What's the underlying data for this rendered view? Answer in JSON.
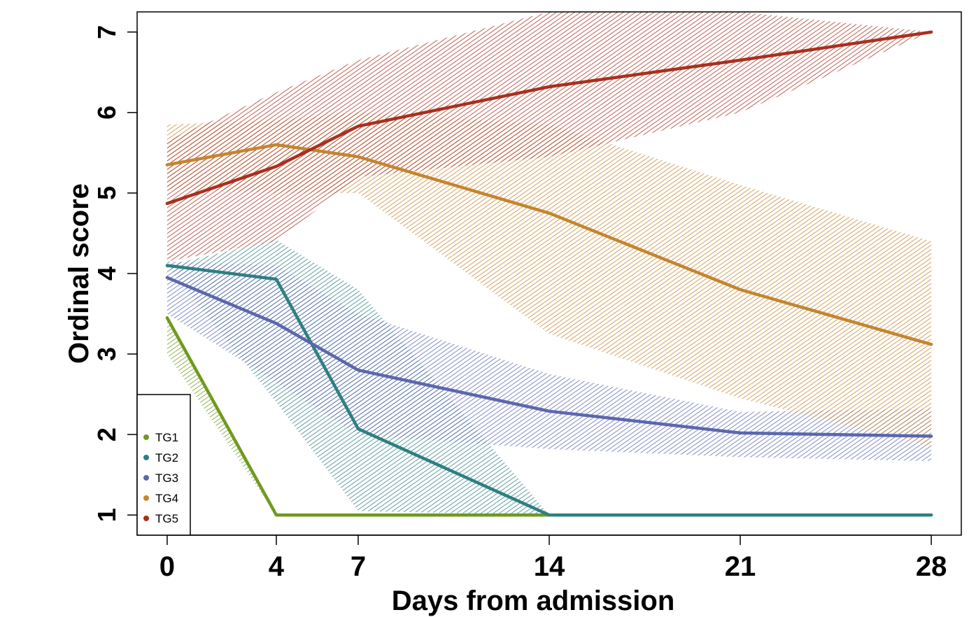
{
  "chart_data": {
    "type": "line",
    "title": "",
    "xlabel": "Days from admission",
    "ylabel": "Ordinal score",
    "x": [
      0,
      4,
      7,
      14,
      21,
      28
    ],
    "xticks": [
      0,
      4,
      7,
      14,
      21,
      28
    ],
    "yticks": [
      1,
      2,
      3,
      4,
      5,
      6,
      7
    ],
    "xlim": [
      -1.1,
      29.1
    ],
    "ylim": [
      0.75,
      7.25
    ],
    "grid": false,
    "legend": "bottom-left",
    "bands": "hatched confidence bands",
    "series": [
      {
        "name": "TG1",
        "color": "#6e9a1e",
        "values": [
          3.45,
          1.0,
          1.0,
          1.0,
          1.0,
          1.0
        ],
        "lower": [
          3.0,
          1.0,
          1.0,
          1.0,
          1.0,
          1.0
        ],
        "upper": [
          3.45,
          1.0,
          1.0,
          1.0,
          1.0,
          1.0
        ]
      },
      {
        "name": "TG2",
        "color": "#2e7f82",
        "values": [
          4.1,
          3.93,
          2.07,
          1.0,
          1.0,
          1.0
        ],
        "lower": [
          4.1,
          2.4,
          1.05,
          1.0,
          1.0,
          1.0
        ],
        "upper": [
          4.1,
          4.42,
          3.8,
          1.0,
          1.0,
          1.0
        ]
      },
      {
        "name": "TG3",
        "color": "#5b67ad",
        "values": [
          3.95,
          3.38,
          2.8,
          2.29,
          2.02,
          1.98
        ],
        "lower": [
          3.5,
          2.65,
          2.0,
          1.82,
          1.72,
          1.67
        ],
        "upper": [
          4.15,
          4.1,
          3.5,
          2.75,
          2.28,
          2.32
        ]
      },
      {
        "name": "TG4",
        "color": "#c4852f",
        "values": [
          5.35,
          5.6,
          5.45,
          4.75,
          3.8,
          3.12
        ],
        "lower": [
          5.05,
          5.0,
          5.0,
          3.25,
          2.45,
          1.85
        ],
        "upper": [
          5.85,
          5.9,
          6.0,
          5.85,
          5.1,
          4.4
        ]
      },
      {
        "name": "TG5",
        "color": "#a8301f",
        "values": [
          4.87,
          5.33,
          5.83,
          6.32,
          6.65,
          7.0
        ],
        "lower": [
          4.15,
          4.4,
          5.2,
          5.45,
          6.0,
          7.0
        ],
        "upper": [
          5.65,
          6.25,
          6.65,
          7.25,
          7.25,
          7.0
        ]
      }
    ]
  }
}
